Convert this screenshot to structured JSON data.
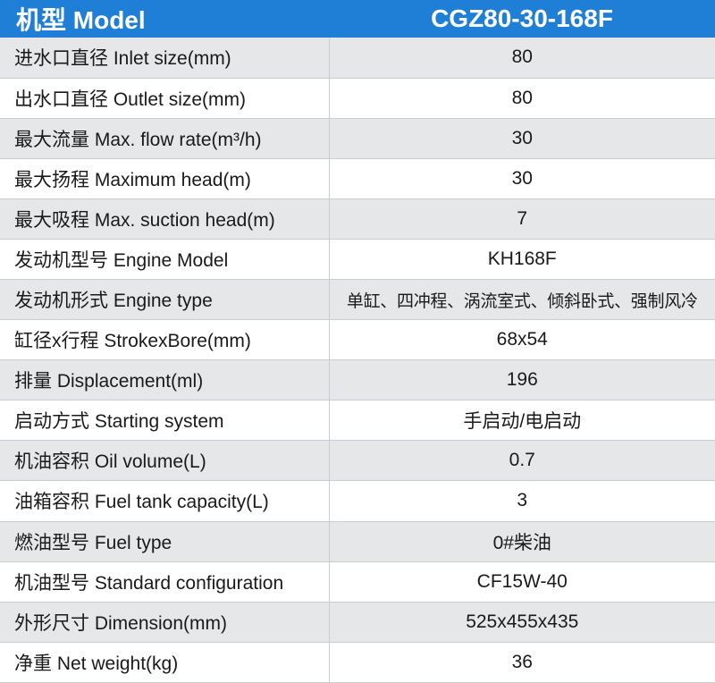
{
  "header": {
    "label": "机型 Model",
    "value": "CGZ80-30-168F"
  },
  "rows": [
    {
      "label": "进水口直径 Inlet size(mm)",
      "value": "80"
    },
    {
      "label": "出水口直径 Outlet size(mm)",
      "value": "80"
    },
    {
      "label": "最大流量 Max. flow rate(m³/h)",
      "value": "30"
    },
    {
      "label": "最大扬程 Maximum head(m)",
      "value": "30"
    },
    {
      "label": "最大吸程 Max. suction head(m)",
      "value": "7"
    },
    {
      "label": "发动机型号 Engine Model",
      "value": "KH168F"
    },
    {
      "label": "发动机形式 Engine type",
      "value": "单缸、四冲程、涡流室式、倾斜卧式、强制风冷"
    },
    {
      "label": "缸径x行程 StrokexBore(mm)",
      "value": "68x54"
    },
    {
      "label": "排量 Displacement(ml)",
      "value": "196"
    },
    {
      "label": "启动方式 Starting system",
      "value": "手启动/电启动"
    },
    {
      "label": "机油容积 Oil volume(L)",
      "value": "0.7"
    },
    {
      "label": "油箱容积 Fuel tank capacity(L)",
      "value": "3"
    },
    {
      "label": "燃油型号 Fuel type",
      "value": "0#柴油"
    },
    {
      "label": "机油型号 Standard configuration",
      "value": "CF15W-40"
    },
    {
      "label": "外形尺寸 Dimension(mm)",
      "value": "525x455x435"
    },
    {
      "label": "净重 Net weight(kg)",
      "value": "36"
    }
  ],
  "colors": {
    "header_bg": "#1f7fd6",
    "stripe_bg": "#e6e7e8"
  }
}
